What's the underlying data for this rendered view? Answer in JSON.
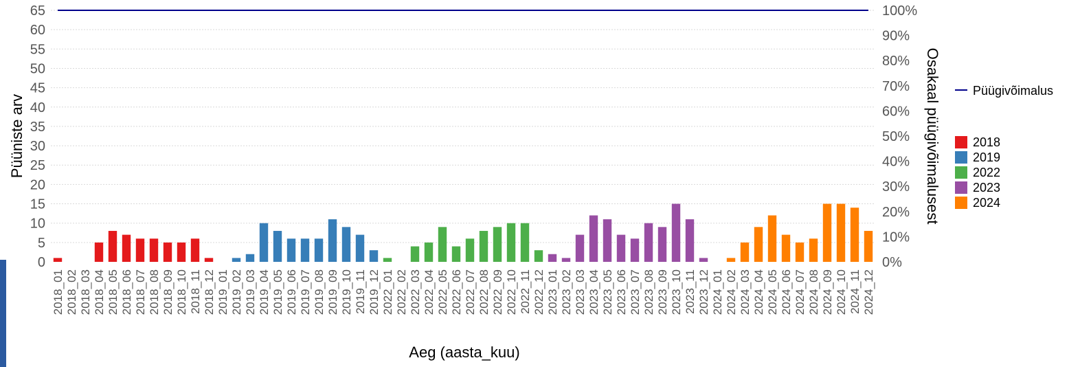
{
  "chart_data": {
    "type": "bar",
    "xlabel": "Aeg (aasta_kuu)",
    "ylabel": "Püüniste arv",
    "y2label": "Osakaal püügivõimalusest",
    "ylim": [
      0,
      65
    ],
    "yticks": [
      "0",
      "5",
      "10",
      "15",
      "20",
      "25",
      "30",
      "35",
      "40",
      "45",
      "50",
      "55",
      "60",
      "65"
    ],
    "y2ticks": [
      "0%",
      "10%",
      "20%",
      "30%",
      "40%",
      "50%",
      "60%",
      "70%",
      "80%",
      "90%",
      "100%"
    ],
    "line": {
      "name": "Püügivõimalus",
      "value": 65,
      "color": "#00008b"
    },
    "categories": [
      "2018_01",
      "2018_02",
      "2018_03",
      "2018_04",
      "2018_05",
      "2018_06",
      "2018_07",
      "2018_08",
      "2018_09",
      "2018_10",
      "2018_11",
      "2018_12",
      "2019_01",
      "2019_02",
      "2019_03",
      "2019_04",
      "2019_05",
      "2019_06",
      "2019_07",
      "2019_08",
      "2019_09",
      "2019_10",
      "2019_11",
      "2019_12",
      "2022_01",
      "2022_02",
      "2022_03",
      "2022_04",
      "2022_05",
      "2022_06",
      "2022_07",
      "2022_08",
      "2022_09",
      "2022_10",
      "2022_11",
      "2022_12",
      "2023_01",
      "2023_02",
      "2023_03",
      "2023_04",
      "2023_05",
      "2023_06",
      "2023_07",
      "2023_08",
      "2023_09",
      "2023_10",
      "2023_11",
      "2023_12",
      "2024_01",
      "2024_02",
      "2024_03",
      "2024_04",
      "2024_05",
      "2024_06",
      "2024_07",
      "2024_08",
      "2024_09",
      "2024_10",
      "2024_11",
      "2024_12"
    ],
    "values": [
      1,
      0,
      0,
      5,
      8,
      7,
      6,
      6,
      5,
      5,
      6,
      1,
      0,
      1,
      2,
      10,
      8,
      6,
      6,
      6,
      11,
      9,
      7,
      3,
      1,
      0,
      4,
      5,
      9,
      4,
      6,
      8,
      9,
      10,
      10,
      3,
      2,
      1,
      7,
      12,
      11,
      7,
      6,
      10,
      9,
      15,
      11,
      1,
      0,
      1,
      5,
      9,
      12,
      7,
      5,
      6,
      15,
      15,
      14,
      8
    ],
    "legend": [
      {
        "name": "2018",
        "color": "#e41a1c"
      },
      {
        "name": "2019",
        "color": "#377eb8"
      },
      {
        "name": "2022",
        "color": "#4daf4a"
      },
      {
        "name": "2023",
        "color": "#984ea3"
      },
      {
        "name": "2024",
        "color": "#ff7f00"
      }
    ],
    "grid": true,
    "legend_position": "right"
  }
}
